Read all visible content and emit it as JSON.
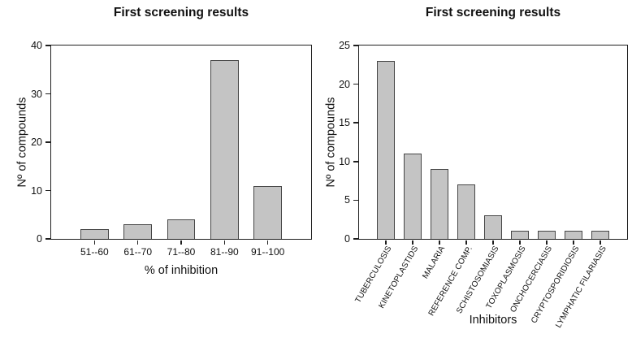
{
  "figure": {
    "background": "#ffffff",
    "bar_fill": "#c4c4c4",
    "bar_border": "#464646",
    "axis_color": "#1f1f1f",
    "text_color": "#111111"
  },
  "chart_data": [
    {
      "type": "bar",
      "title": "First screening results",
      "categories": [
        "51--60",
        "61--70",
        "71--80",
        "81--90",
        "91--100"
      ],
      "values": [
        2,
        3,
        4,
        37,
        11
      ],
      "xlabel": "% of inhibition",
      "ylabel": "Nº of compounds",
      "ylim": [
        0,
        40
      ],
      "yticks": [
        0,
        10,
        20,
        30,
        40
      ],
      "tick_label_rotation": 0,
      "grid": false,
      "legend": "none"
    },
    {
      "type": "bar",
      "title": "First screening results",
      "categories": [
        "TUBERCULOSIS",
        "KINETOPLASTIDS",
        "MALARIA",
        "REFERENCE COMP.",
        "SCHISTOSOMIASIS",
        "TOXOPLASMOSIS",
        "ONCHOCERCIASIS",
        "CRYPTOSPORIDIOSIS",
        "LYMPHATIC FILARIASIS"
      ],
      "values": [
        23,
        11,
        9,
        7,
        3,
        1,
        1,
        1,
        1
      ],
      "xlabel": "Inhibitors",
      "ylabel": "Nº of compounds",
      "ylim": [
        0,
        25
      ],
      "yticks": [
        0,
        5,
        10,
        15,
        20,
        25
      ],
      "tick_label_rotation": 60,
      "grid": false,
      "legend": "none"
    }
  ]
}
